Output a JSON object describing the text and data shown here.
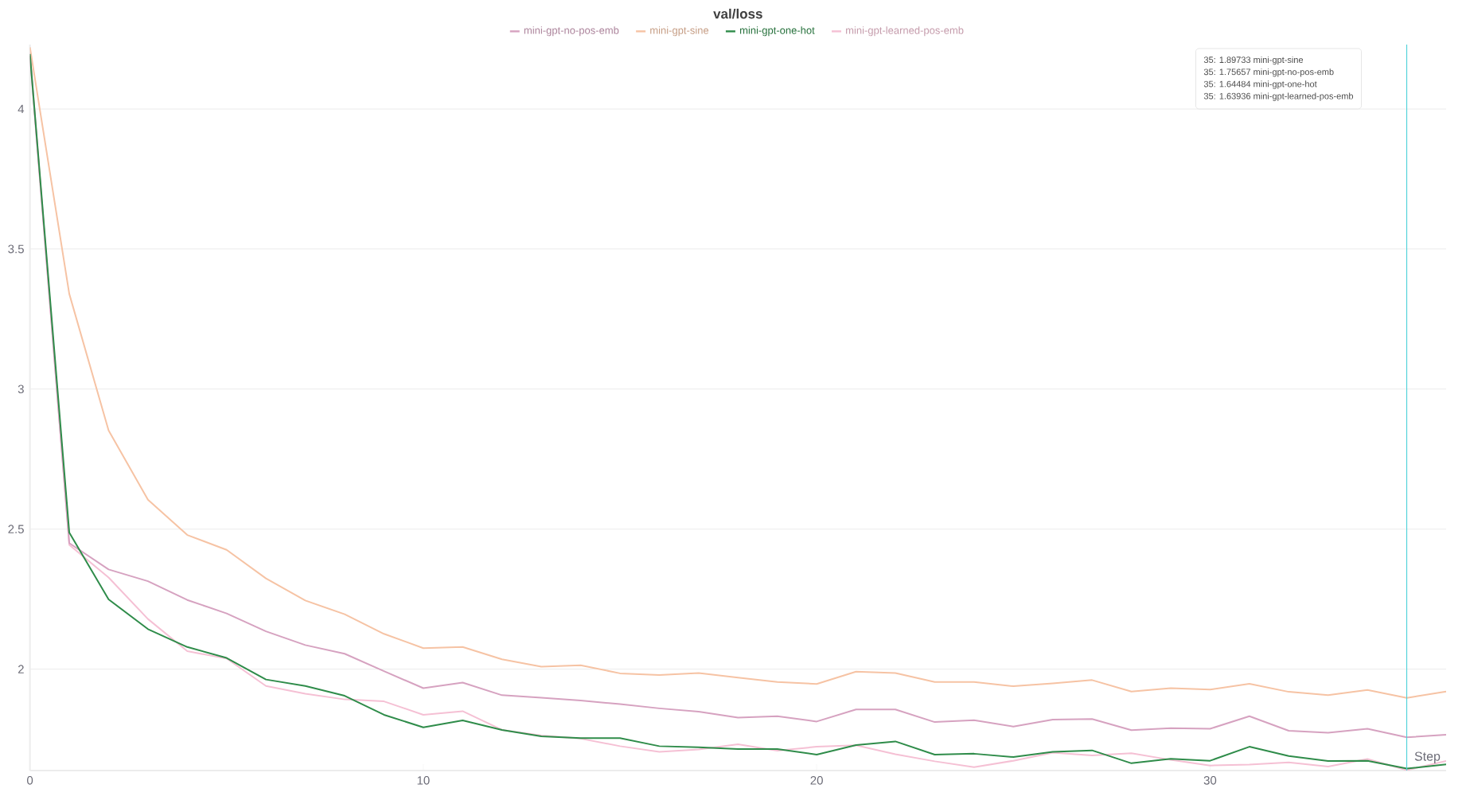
{
  "chart_data": {
    "type": "line",
    "title": "val/loss",
    "xlabel": "Step",
    "x": [
      0,
      1,
      2,
      3,
      4,
      5,
      6,
      7,
      8,
      9,
      10,
      11,
      12,
      13,
      14,
      15,
      16,
      17,
      18,
      19,
      20,
      21,
      22,
      23,
      24,
      25,
      26,
      27,
      28,
      29,
      30,
      31,
      32,
      33,
      34,
      35,
      36
    ],
    "series": [
      {
        "name": "mini-gpt-no-pos-emb",
        "color": "#d6a2c0",
        "values": [
          4.19,
          2.45,
          2.356,
          2.314,
          2.247,
          2.199,
          2.135,
          2.086,
          2.055,
          1.993,
          1.932,
          1.952,
          1.907,
          1.898,
          1.888,
          1.875,
          1.86,
          1.848,
          1.827,
          1.832,
          1.813,
          1.856,
          1.856,
          1.811,
          1.818,
          1.795,
          1.82,
          1.822,
          1.782,
          1.789,
          1.787,
          1.832,
          1.78,
          1.773,
          1.787,
          1.75657,
          1.766
        ]
      },
      {
        "name": "mini-gpt-sine",
        "color": "#f6c3a4",
        "values": [
          4.22,
          3.34,
          2.852,
          2.605,
          2.479,
          2.426,
          2.324,
          2.245,
          2.196,
          2.126,
          2.075,
          2.079,
          2.035,
          2.009,
          2.014,
          1.985,
          1.979,
          1.986,
          1.97,
          1.954,
          1.947,
          1.991,
          1.986,
          1.954,
          1.954,
          1.939,
          1.949,
          1.961,
          1.92,
          1.932,
          1.927,
          1.948,
          1.919,
          1.907,
          1.926,
          1.89733,
          1.92
        ]
      },
      {
        "name": "mini-gpt-one-hot",
        "color": "#2f8c4a",
        "values": [
          4.196,
          2.488,
          2.249,
          2.143,
          2.079,
          2.04,
          1.963,
          1.94,
          1.905,
          1.837,
          1.792,
          1.817,
          1.783,
          1.76,
          1.754,
          1.754,
          1.725,
          1.721,
          1.715,
          1.715,
          1.695,
          1.729,
          1.742,
          1.695,
          1.698,
          1.686,
          1.705,
          1.71,
          1.664,
          1.68,
          1.673,
          1.723,
          1.69,
          1.672,
          1.673,
          1.64484,
          1.66
        ]
      },
      {
        "name": "mini-gpt-learned-pos-emb",
        "color": "#f5c0d4",
        "values": [
          4.2,
          2.444,
          2.327,
          2.179,
          2.064,
          2.038,
          1.94,
          1.912,
          1.892,
          1.885,
          1.837,
          1.85,
          1.783,
          1.763,
          1.752,
          1.725,
          1.705,
          1.713,
          1.732,
          1.709,
          1.723,
          1.728,
          1.696,
          1.671,
          1.65,
          1.673,
          1.702,
          1.692,
          1.7,
          1.676,
          1.656,
          1.659,
          1.667,
          1.652,
          1.679,
          1.63936,
          1.672
        ]
      }
    ],
    "xlim": [
      0,
      36
    ],
    "ylim": [
      1.638,
      4.23
    ],
    "xticks": [
      0,
      10,
      20,
      30
    ],
    "yticks": [
      2,
      2.5,
      3,
      3.5,
      4
    ],
    "grid": "y",
    "legend": "top",
    "ref_lines": [
      {
        "axis": "x",
        "value": 35,
        "color": "#4fd1d9"
      }
    ],
    "annotations": [
      "35: 1.89733 mini-gpt-sine",
      "35: 1.75657 mini-gpt-no-pos-emb",
      "35: 1.64484 mini-gpt-one-hot",
      "35: 1.63936 mini-gpt-learned-pos-emb"
    ]
  }
}
